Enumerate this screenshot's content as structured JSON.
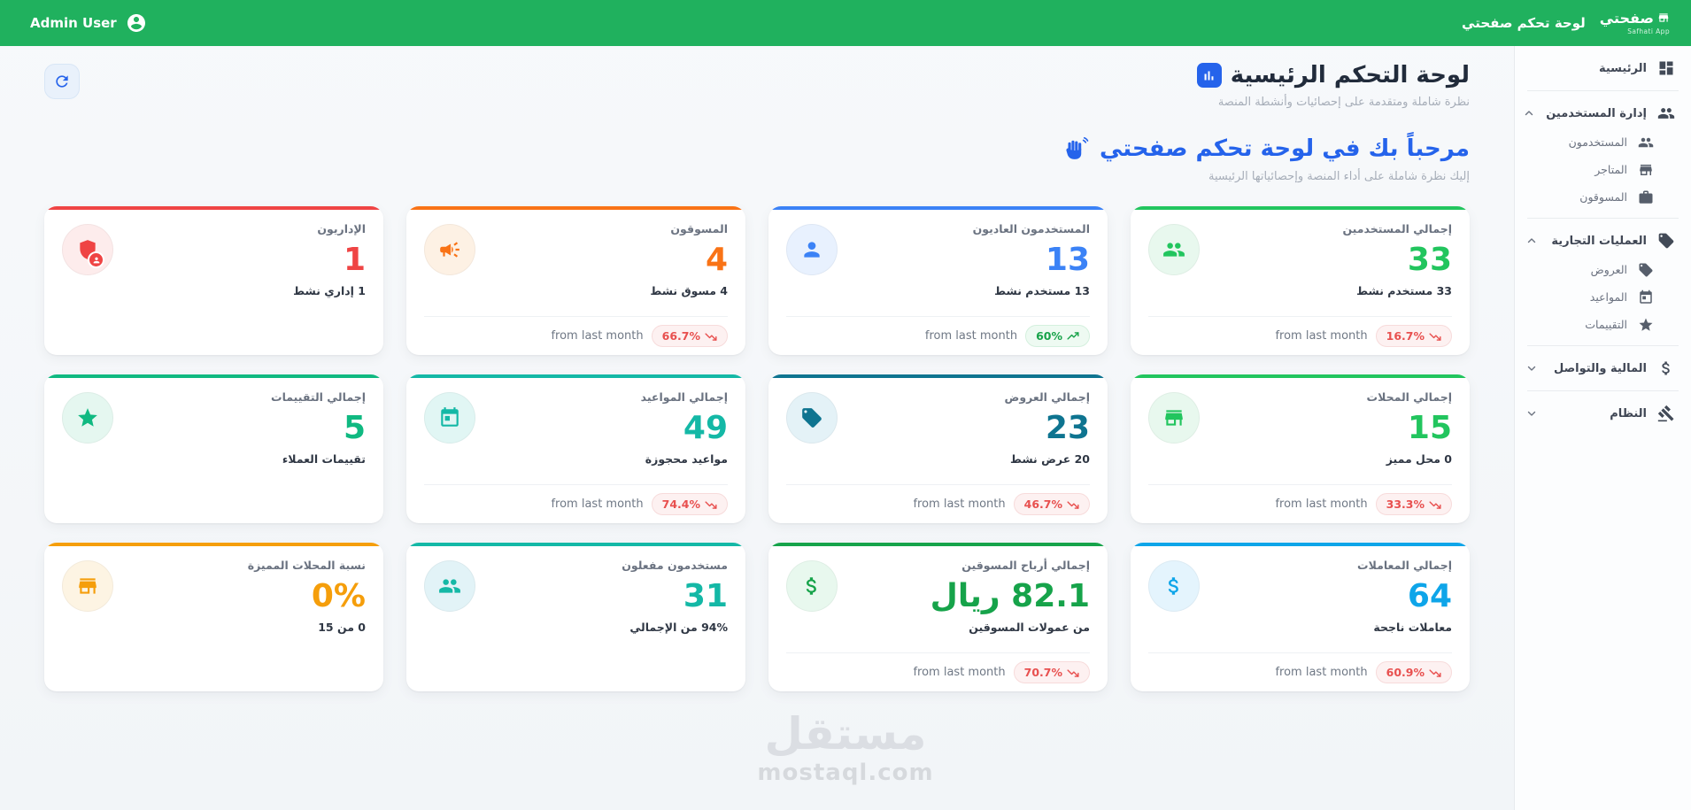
{
  "topbar": {
    "admin_user": "Admin User",
    "title": "لوحة تحكم صفحتي",
    "logo_name": "صفحتي",
    "logo_tagline": "Safhati App",
    "color": "#20b15e"
  },
  "page": {
    "title": "لوحة التحكم الرئيسية",
    "subtitle": "نظرة شاملة ومتقدمة على إحصائيات وأنشطة المنصة",
    "welcome_title": "مرحباً بك في لوحة تحكم صفحتي",
    "welcome_subtitle": "إليك نظرة شاملة على أداء المنصة وإحصائياتها الرئيسية"
  },
  "sidebar": {
    "items": [
      {
        "key": "home",
        "label": "الرئيسية",
        "icon": "dashboard-icon",
        "expandable": false,
        "expanded": false,
        "children": []
      },
      {
        "key": "users-management",
        "label": "إدارة المستخدمين",
        "icon": "users-icon",
        "expandable": true,
        "expanded": true,
        "children": [
          {
            "key": "users",
            "label": "المستخدمون",
            "icon": "users-icon"
          },
          {
            "key": "stores",
            "label": "المتاجر",
            "icon": "store-icon"
          },
          {
            "key": "marketers",
            "label": "المسوقون",
            "icon": "briefcase-icon"
          }
        ]
      },
      {
        "key": "business-operations",
        "label": "العمليات التجارية",
        "icon": "tag-icon",
        "expandable": true,
        "expanded": true,
        "children": [
          {
            "key": "offers",
            "label": "العروض",
            "icon": "tag-icon"
          },
          {
            "key": "appointments",
            "label": "المواعيد",
            "icon": "calendar-icon"
          },
          {
            "key": "ratings",
            "label": "التقييمات",
            "icon": "star-icon"
          }
        ]
      },
      {
        "key": "finance-communication",
        "label": "المالية والتواصل",
        "icon": "dollar-icon",
        "expandable": true,
        "expanded": false,
        "children": []
      },
      {
        "key": "system",
        "label": "النظام",
        "icon": "gavel-icon",
        "expandable": true,
        "expanded": false,
        "children": []
      }
    ]
  },
  "cards": [
    {
      "key": "total-users",
      "title": "إجمالي المستخدمين",
      "value": "33",
      "subtitle": "33 مستخدم نشط",
      "icon": "users-icon",
      "color": "#22c55e",
      "icon_bg": "#e8f8ee",
      "footer": {
        "label": "from last month",
        "badge": "16.7%",
        "trend": "down"
      }
    },
    {
      "key": "regular-users",
      "title": "المستخدمون العاديون",
      "value": "13",
      "subtitle": "13 مستخدم نشط",
      "icon": "user-icon",
      "color": "#3b82f6",
      "icon_bg": "#e8f1fe",
      "footer": {
        "label": "from last month",
        "badge": "60%",
        "trend": "up"
      }
    },
    {
      "key": "marketers",
      "title": "المسوقون",
      "value": "4",
      "subtitle": "4 مسوق نشط",
      "icon": "megaphone-icon",
      "color": "#f97316",
      "icon_bg": "#fdf1e4",
      "footer": {
        "label": "from last month",
        "badge": "66.7%",
        "trend": "down"
      }
    },
    {
      "key": "admins",
      "title": "الإداريون",
      "value": "1",
      "subtitle": "1 إداري نشط",
      "icon": "shield-user-icon",
      "color": "#ef4444",
      "icon_bg": "#fdecec",
      "footer": null
    },
    {
      "key": "total-shops",
      "title": "إجمالي المحلات",
      "value": "15",
      "subtitle": "0 محل مميز",
      "icon": "store-icon",
      "color": "#22c55e",
      "icon_bg": "#e8f8ee",
      "footer": {
        "label": "from last month",
        "badge": "33.3%",
        "trend": "down"
      }
    },
    {
      "key": "total-offers",
      "title": "إجمالي العروض",
      "value": "23",
      "subtitle": "20 عرض نشط",
      "icon": "tag-icon",
      "color": "#0e7490",
      "icon_bg": "#e4f2f7",
      "footer": {
        "label": "from last month",
        "badge": "46.7%",
        "trend": "down"
      }
    },
    {
      "key": "total-appointments",
      "title": "إجمالي المواعيد",
      "value": "49",
      "subtitle": "مواعيد محجوزة",
      "icon": "calendar-icon",
      "color": "#14b8a6",
      "icon_bg": "#e1f6f4",
      "footer": {
        "label": "from last month",
        "badge": "74.4%",
        "trend": "down"
      }
    },
    {
      "key": "total-ratings",
      "title": "إجمالي التقييمات",
      "value": "5",
      "subtitle": "تقييمات العملاء",
      "icon": "star-icon",
      "color": "#10b981",
      "icon_bg": "#e5f7f0",
      "footer": null
    },
    {
      "key": "total-transactions",
      "title": "إجمالي المعاملات",
      "value": "64",
      "subtitle": "معاملات ناجحة",
      "icon": "dollar-icon",
      "color": "#0ea5e9",
      "icon_bg": "#e4f4fd",
      "footer": {
        "label": "from last month",
        "badge": "60.9%",
        "trend": "down"
      }
    },
    {
      "key": "marketer-profits",
      "title": "إجمالي أرباح المسوقين",
      "value": "82.1 ريال",
      "subtitle": "من عمولات المسوقين",
      "icon": "dollar-icon",
      "color": "#16a34a",
      "icon_bg": "#e8f8ee",
      "footer": {
        "label": "from last month",
        "badge": "70.7%",
        "trend": "down"
      }
    },
    {
      "key": "activated-users",
      "title": "مستخدمون مفعلون",
      "value": "31",
      "subtitle": "94% من الإجمالي",
      "icon": "users-icon",
      "color": "#14b8a6",
      "icon_bg": "#e2f3f7",
      "footer": null
    },
    {
      "key": "featured-shops-ratio",
      "title": "نسبة المحلات المميزة",
      "value": "0%",
      "subtitle": "0 من 15",
      "icon": "store-icon",
      "color": "#f59e0b",
      "icon_bg": "#fdf4e3",
      "footer": null
    }
  ],
  "watermark": {
    "line1": "مستقل",
    "line2": "mostaql.com"
  }
}
